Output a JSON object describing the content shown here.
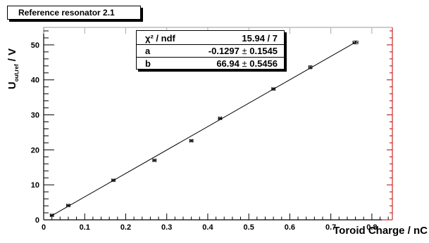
{
  "title": "Reference resonator 2.1",
  "stats": {
    "rows": [
      {
        "label": "χ² / ndf",
        "value": "15.94 / 7",
        "error": ""
      },
      {
        "label": "a",
        "value": "-0.1297",
        "error": "0.1545"
      },
      {
        "label": "b",
        "value": "66.94",
        "error": "0.5456"
      }
    ]
  },
  "chart_data": {
    "type": "scatter",
    "xlabel": "Toroid Charge / nC",
    "ylabel": "U",
    "ylabel_subscript": "out,ref",
    "ylabel_unit": " / V",
    "xlim": [
      0,
      0.85
    ],
    "ylim": [
      0,
      55
    ],
    "xticks": [
      "0",
      "0.1",
      "0.2",
      "0.3",
      "0.4",
      "0.5",
      "0.6",
      "0.7",
      "0.8"
    ],
    "yticks": [
      "0",
      "10",
      "20",
      "30",
      "40",
      "50"
    ],
    "series": [
      {
        "x": [
          0.02,
          0.06,
          0.17,
          0.27,
          0.36,
          0.43,
          0.56,
          0.65,
          0.76
        ],
        "y": [
          1.3,
          4.1,
          11.3,
          17.0,
          22.6,
          29.0,
          37.4,
          43.6,
          50.7
        ],
        "xerr": [
          0.004,
          0.004,
          0.004,
          0.004,
          0.004,
          0.004,
          0.004,
          0.004,
          0.006
        ],
        "yerr": [
          0.3,
          0.3,
          0.3,
          0.3,
          0.3,
          0.3,
          0.3,
          0.4,
          0.4
        ]
      }
    ],
    "fit": {
      "a": -0.1297,
      "b": 66.94,
      "x_range": [
        0.018,
        0.762
      ]
    },
    "colors": {
      "axis": "#000000",
      "frame_accent": "#c00000"
    }
  }
}
